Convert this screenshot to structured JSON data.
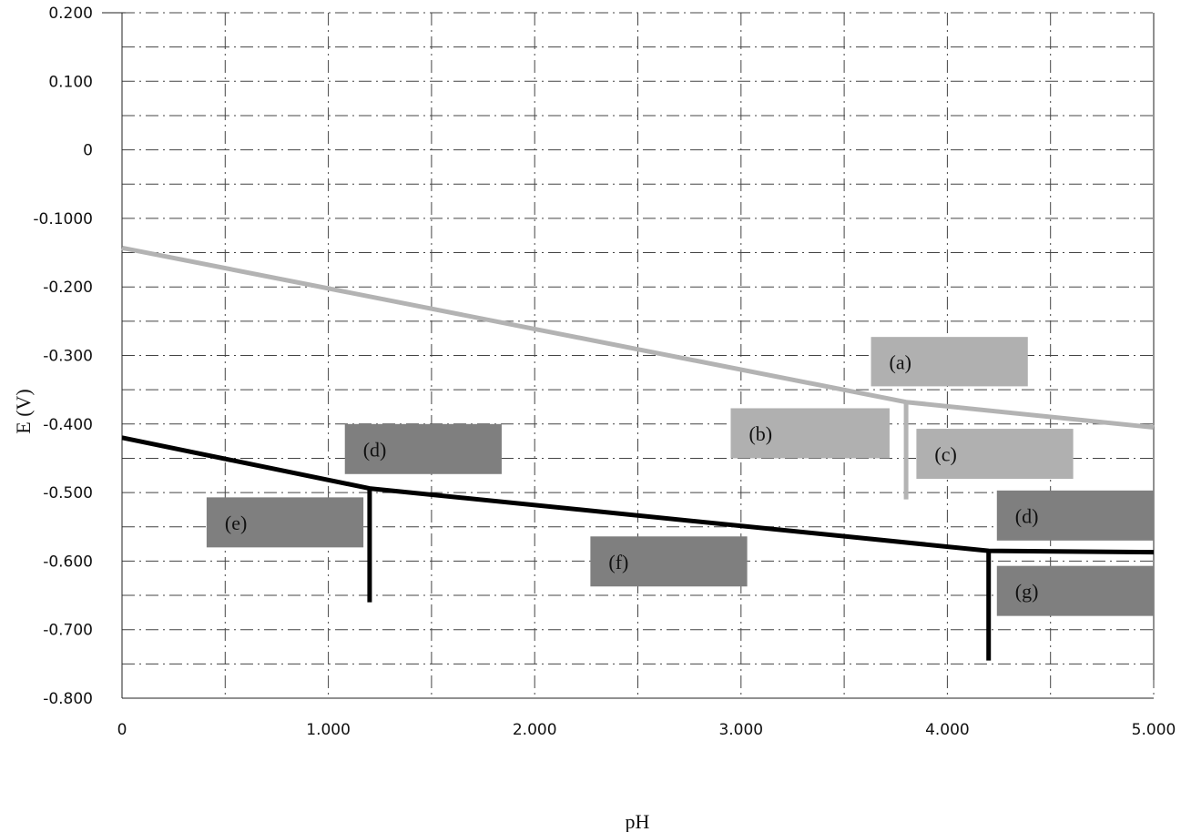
{
  "chart_data": {
    "type": "line",
    "title": "",
    "xlabel": "pH",
    "ylabel": "E (V)",
    "xlim": [
      0,
      5
    ],
    "ylim": [
      -0.8,
      0.2
    ],
    "x_tick_values": [
      0,
      1,
      2,
      3,
      4,
      5
    ],
    "x_tick_labels": [
      "0",
      "1.000",
      "2.000",
      "3.000",
      "4.000",
      "5.000"
    ],
    "y_tick_values": [
      0.2,
      0.1,
      0,
      -0.1,
      -0.2,
      -0.3,
      -0.4,
      -0.5,
      -0.6,
      -0.7,
      -0.8
    ],
    "y_tick_labels": [
      "0.200",
      "0.100",
      "0",
      "-0.1000",
      "-0.200",
      "-0.300",
      "-0.400",
      "-0.500",
      "-0.600",
      "-0.700",
      "-0.800"
    ],
    "grid": true,
    "colors": {
      "light_line": "#b3b3b3",
      "dark_line": "#000000",
      "light_box": "#b0b0b0",
      "dark_box": "#7f7f7f"
    },
    "series": [
      {
        "points": [
          [
            0,
            -0.143
          ],
          [
            3.8,
            -0.368
          ],
          [
            5,
            -0.405
          ]
        ],
        "color": "#b3b3b3"
      },
      {
        "points": [
          [
            3.8,
            -0.368
          ],
          [
            3.8,
            -0.51
          ]
        ],
        "color": "#b3b3b3"
      },
      {
        "points": [
          [
            0,
            -0.42
          ],
          [
            1.2,
            -0.494
          ],
          [
            4.2,
            -0.585
          ],
          [
            5,
            -0.587
          ]
        ],
        "color": "#000000"
      },
      {
        "points": [
          [
            1.2,
            -0.494
          ],
          [
            1.2,
            -0.66
          ]
        ],
        "color": "#000000"
      },
      {
        "points": [
          [
            4.2,
            -0.585
          ],
          [
            4.2,
            -0.745
          ]
        ],
        "color": "#000000"
      }
    ],
    "regions": [
      {
        "label": "(a)",
        "x0": 3.63,
        "x1": 4.39,
        "y0": -0.273,
        "y1": -0.345,
        "shade": "light"
      },
      {
        "label": "(b)",
        "x0": 2.95,
        "x1": 3.72,
        "y0": -0.377,
        "y1": -0.45,
        "shade": "light"
      },
      {
        "label": "(c)",
        "x0": 3.85,
        "x1": 4.61,
        "y0": -0.407,
        "y1": -0.48,
        "shade": "light"
      },
      {
        "label": "(d)",
        "x0": 1.08,
        "x1": 1.84,
        "y0": -0.4,
        "y1": -0.473,
        "shade": "dark"
      },
      {
        "label": "(e)",
        "x0": 0.41,
        "x1": 1.17,
        "y0": -0.507,
        "y1": -0.58,
        "shade": "dark"
      },
      {
        "label": "(f)",
        "x0": 2.27,
        "x1": 3.03,
        "y0": -0.564,
        "y1": -0.637,
        "shade": "dark"
      },
      {
        "label": "(d)",
        "x0": 4.24,
        "x1": 5,
        "y0": -0.497,
        "y1": -0.57,
        "shade": "dark"
      },
      {
        "label": "(g)",
        "x0": 4.24,
        "x1": 5,
        "y0": -0.607,
        "y1": -0.68,
        "shade": "dark"
      }
    ]
  }
}
